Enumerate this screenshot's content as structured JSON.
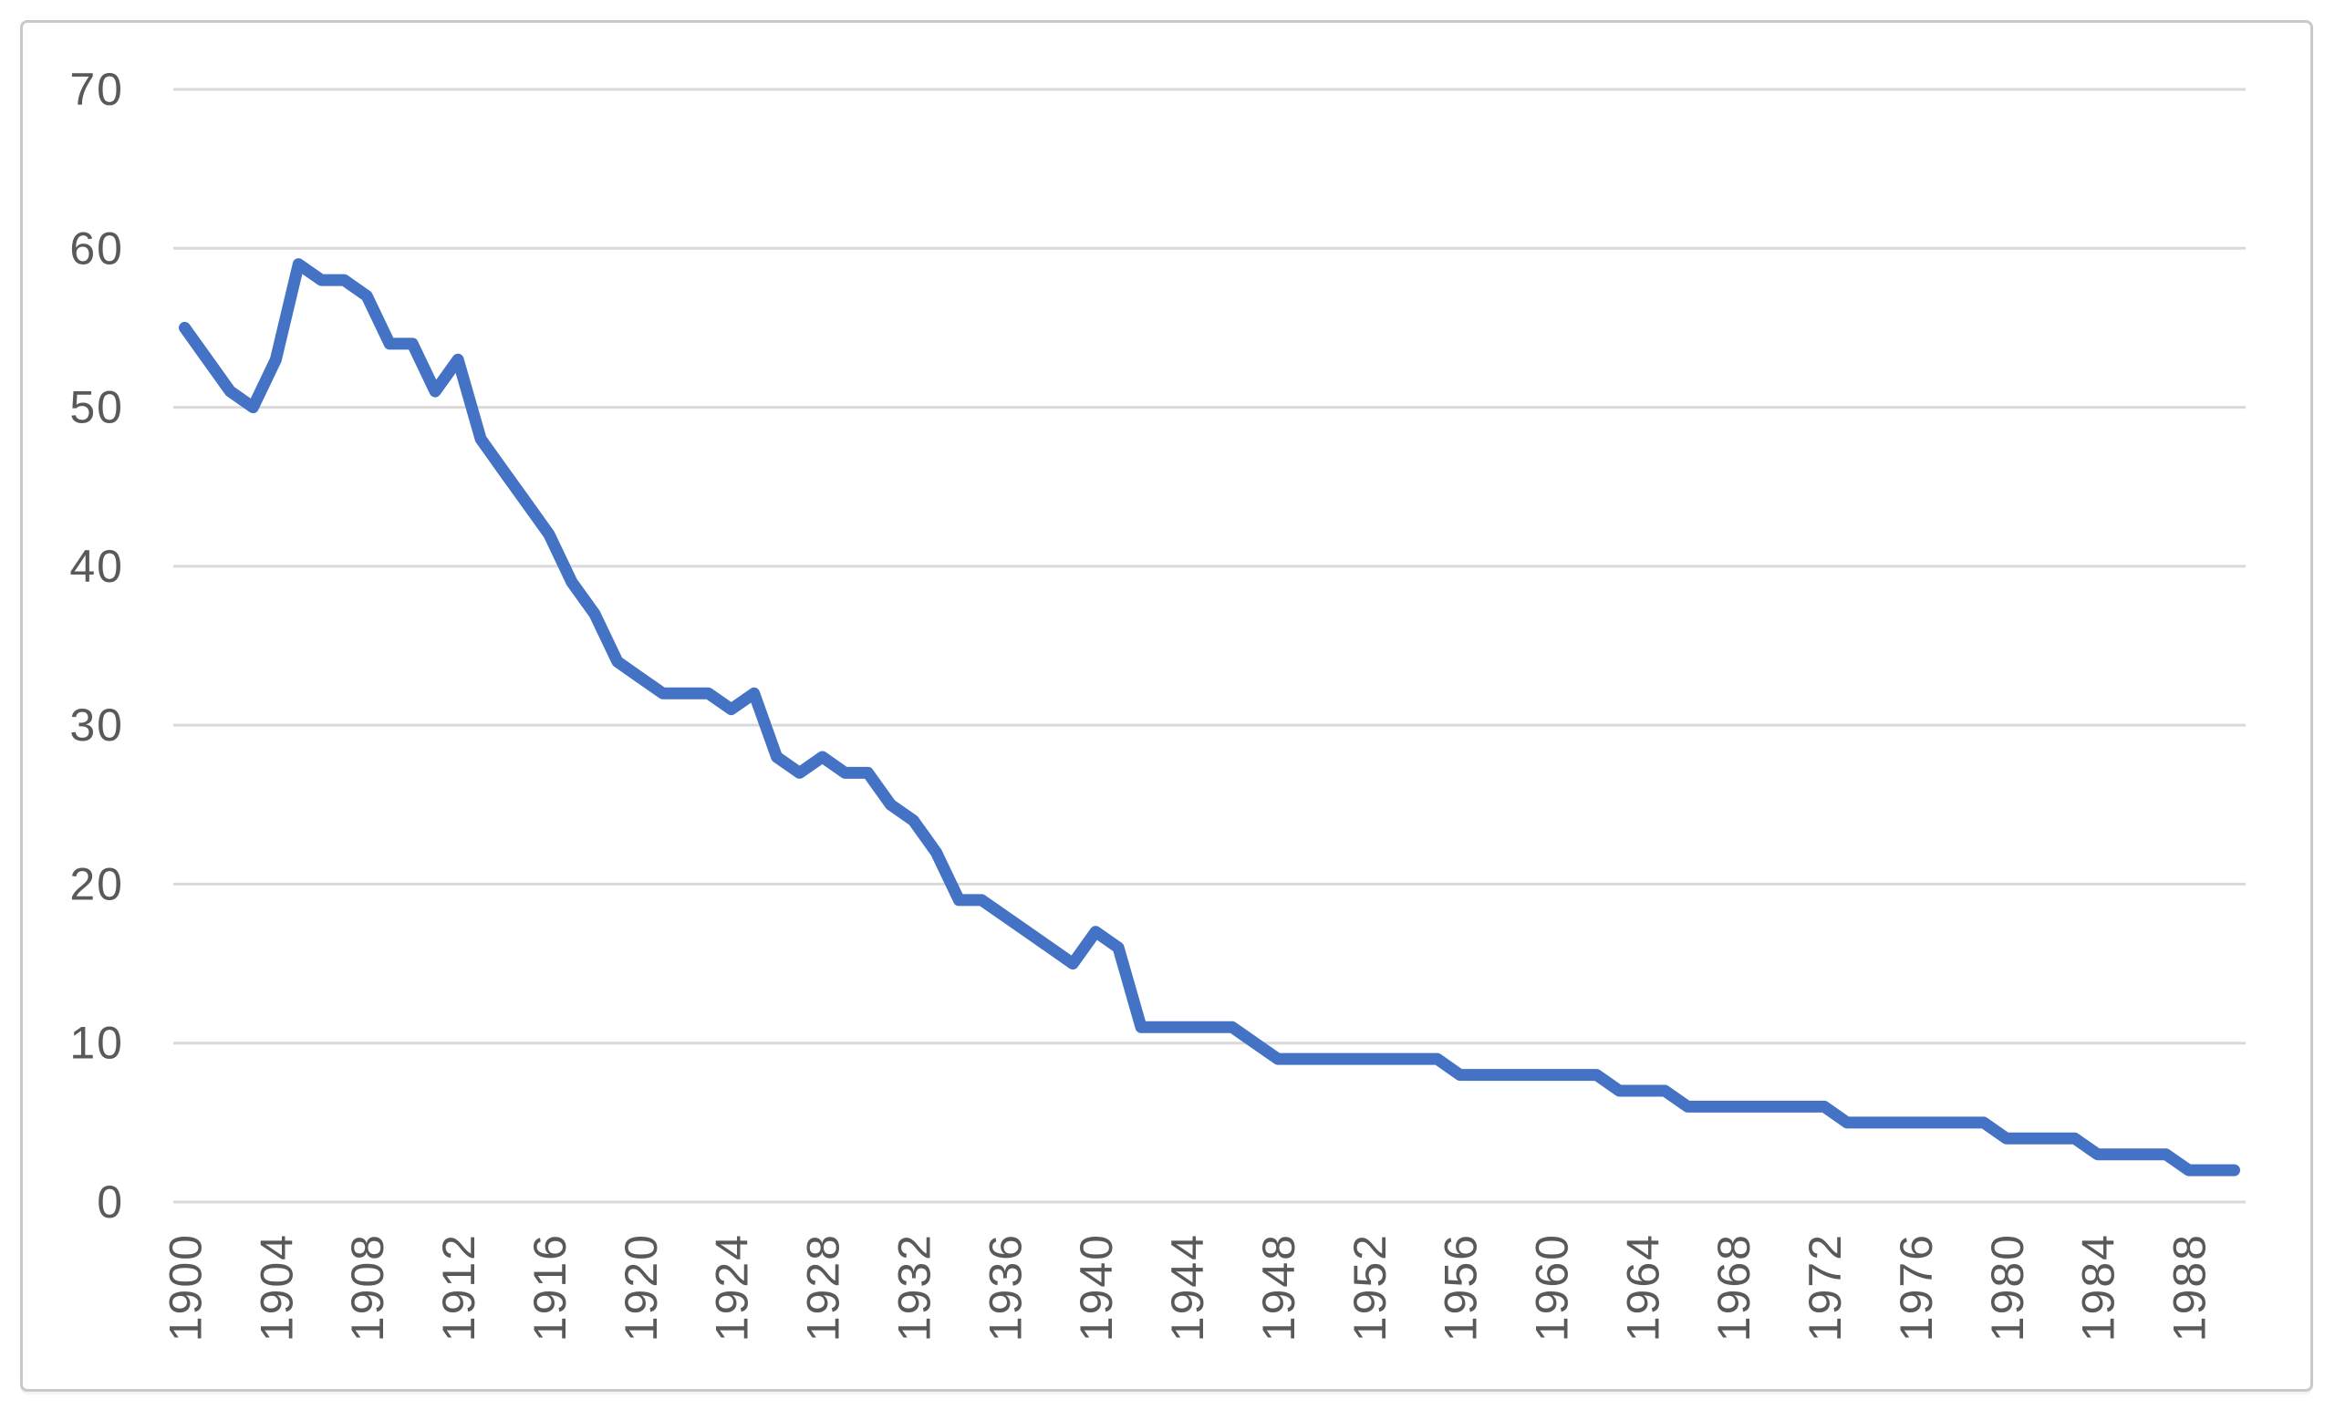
{
  "chart_data": {
    "type": "line",
    "title": "",
    "xlabel": "",
    "ylabel": "",
    "ylim": [
      0,
      70
    ],
    "y_ticks": [
      0,
      10,
      20,
      30,
      40,
      50,
      60,
      70
    ],
    "x_tick_years": [
      1900,
      1904,
      1908,
      1912,
      1916,
      1920,
      1924,
      1928,
      1932,
      1936,
      1940,
      1944,
      1948,
      1952,
      1956,
      1960,
      1964,
      1968,
      1972,
      1976,
      1980,
      1984,
      1988
    ],
    "grid": "horizontal",
    "legend": "none",
    "series": [
      {
        "name": "",
        "x": [
          1900,
          1901,
          1902,
          1903,
          1904,
          1905,
          1906,
          1907,
          1908,
          1909,
          1910,
          1911,
          1912,
          1913,
          1914,
          1915,
          1916,
          1917,
          1918,
          1919,
          1920,
          1921,
          1922,
          1923,
          1924,
          1925,
          1926,
          1927,
          1928,
          1929,
          1930,
          1931,
          1932,
          1933,
          1934,
          1935,
          1936,
          1937,
          1938,
          1939,
          1940,
          1941,
          1942,
          1943,
          1944,
          1945,
          1946,
          1947,
          1948,
          1949,
          1950,
          1951,
          1952,
          1953,
          1954,
          1955,
          1956,
          1957,
          1958,
          1959,
          1960,
          1961,
          1962,
          1963,
          1964,
          1965,
          1966,
          1967,
          1968,
          1969,
          1970,
          1971,
          1972,
          1973,
          1974,
          1975,
          1976,
          1977,
          1978,
          1979,
          1980,
          1981,
          1982,
          1983,
          1984,
          1985,
          1986,
          1987,
          1988,
          1989,
          1990
        ],
        "values": [
          55,
          53,
          51,
          50,
          53,
          59,
          58,
          58,
          57,
          54,
          54,
          51,
          53,
          48,
          46,
          44,
          42,
          39,
          37,
          34,
          33,
          32,
          32,
          32,
          31,
          32,
          28,
          27,
          28,
          27,
          27,
          25,
          24,
          22,
          19,
          19,
          18,
          17,
          16,
          15,
          17,
          16,
          11,
          11,
          11,
          11,
          11,
          10,
          9,
          9,
          9,
          9,
          9,
          9,
          9,
          9,
          8,
          8,
          8,
          8,
          8,
          8,
          8,
          7,
          7,
          7,
          6,
          6,
          6,
          6,
          6,
          6,
          6,
          5,
          5,
          5,
          5,
          5,
          5,
          5,
          4,
          4,
          4,
          4,
          3,
          3,
          3,
          3,
          2,
          2,
          2
        ]
      }
    ],
    "colors": {
      "line": "#4472c4",
      "gridline": "#d9d9d9",
      "axis_line": "#d9d9d9",
      "tick_label": "#595959",
      "frame_border": "#c9c9c9",
      "background": "#ffffff"
    }
  }
}
